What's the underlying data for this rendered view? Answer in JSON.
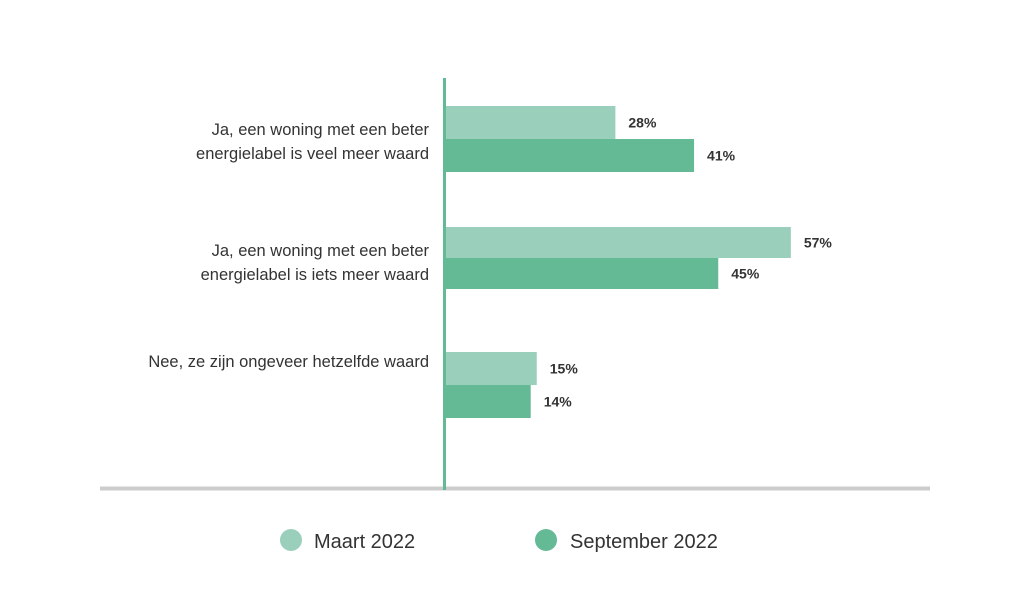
{
  "chart_data": {
    "type": "bar",
    "orientation": "horizontal",
    "categories": [
      [
        "Ja, een woning met een beter",
        "energielabel is veel meer waard"
      ],
      [
        "Ja, een woning met een beter",
        "energielabel is iets meer waard"
      ],
      [
        "Nee, ze zijn ongeveer hetzelfde waard"
      ]
    ],
    "series": [
      {
        "name": "Maart 2022",
        "values": [
          28,
          57,
          15
        ],
        "labels": [
          "28%",
          "57%",
          "15%"
        ],
        "color": "#9acfbb"
      },
      {
        "name": "September 2022",
        "values": [
          41,
          45,
          14
        ],
        "labels": [
          "41%",
          "45%",
          "14%"
        ],
        "color": "#65ba96"
      }
    ],
    "xlim": [
      0,
      100
    ],
    "grid": false,
    "legend_position": "bottom-center",
    "title": "",
    "xlabel": "",
    "ylabel": ""
  },
  "colors": {
    "axis_vertical": "#65ba96",
    "axis_baseline": "#cccccc",
    "text": "#333333"
  }
}
